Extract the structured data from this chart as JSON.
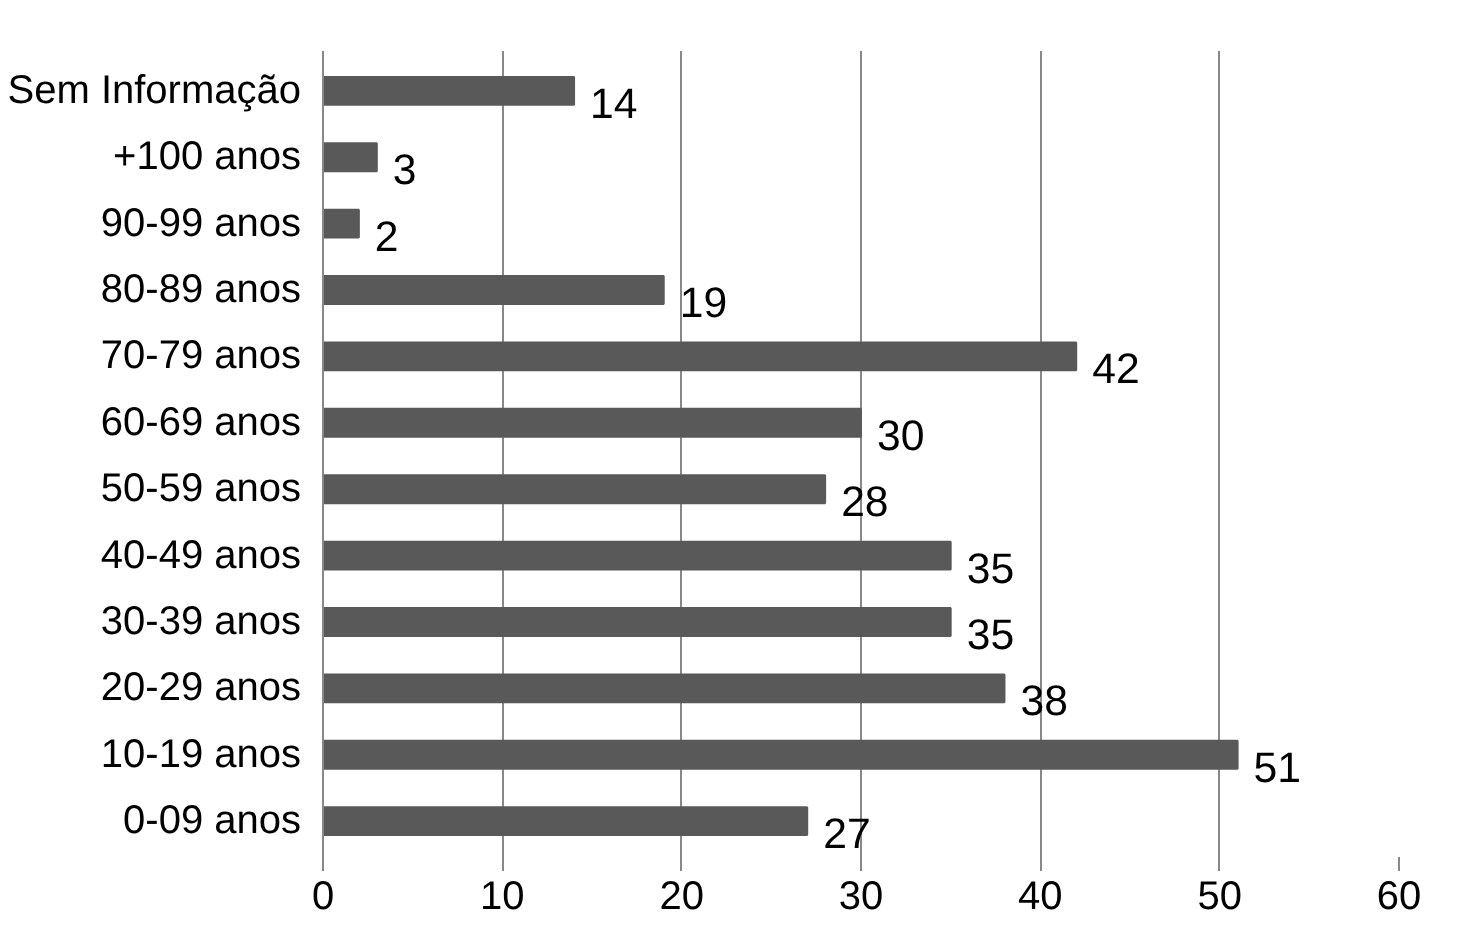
{
  "chart_data": {
    "type": "bar",
    "orientation": "horizontal",
    "categories": [
      "Sem Informação",
      "+100 anos",
      "90-99 anos",
      "80-89 anos",
      "70-79 anos",
      "60-69 anos",
      "50-59 anos",
      "40-49 anos",
      "30-39 anos",
      "20-29 anos",
      "10-19 anos",
      "0-09 anos"
    ],
    "values": [
      14,
      3,
      2,
      19,
      42,
      30,
      28,
      35,
      35,
      38,
      51,
      27
    ],
    "color": "#595959",
    "xlim": [
      0,
      60
    ],
    "xticks": [
      0,
      10,
      20,
      30,
      40,
      50,
      60
    ],
    "grid": "x",
    "data_labels": true
  }
}
